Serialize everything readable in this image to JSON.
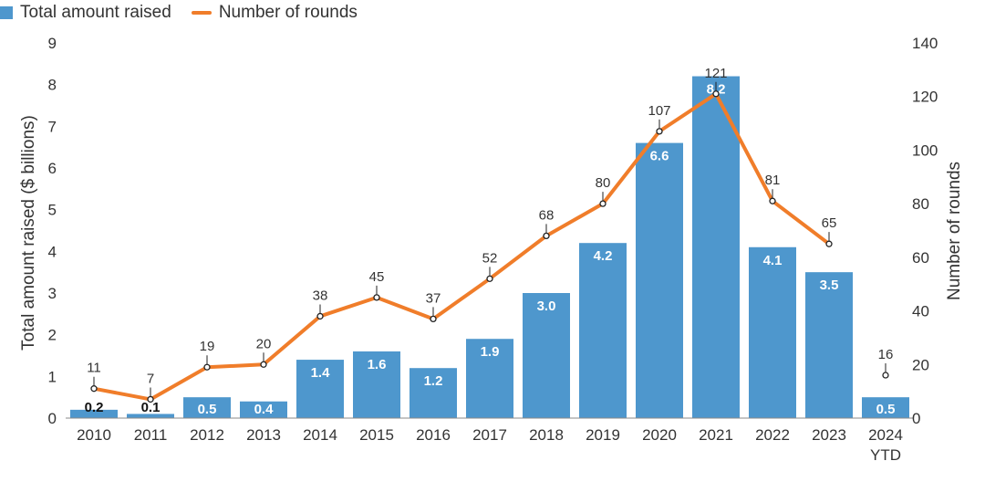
{
  "chart_data": {
    "type": "bar",
    "categories": [
      "2010",
      "2011",
      "2012",
      "2013",
      "2014",
      "2015",
      "2016",
      "2017",
      "2018",
      "2019",
      "2020",
      "2021",
      "2022",
      "2023",
      "2024"
    ],
    "category_sublabels": [
      "",
      "",
      "",
      "",
      "",
      "",
      "",
      "",
      "",
      "",
      "",
      "",
      "",
      "",
      "YTD"
    ],
    "series": [
      {
        "name": "Total amount raised",
        "type": "bar",
        "axis": "left",
        "color": "#4e97cd",
        "values": [
          0.2,
          0.1,
          0.5,
          0.4,
          1.4,
          1.6,
          1.2,
          1.9,
          3.0,
          4.2,
          6.6,
          8.2,
          4.1,
          3.5,
          0.5
        ],
        "labels": [
          "0.2",
          "0.1",
          "0.5",
          "0.4",
          "1.4",
          "1.6",
          "1.2",
          "1.9",
          "3.0",
          "4.2",
          "6.6",
          "8.2",
          "4.1",
          "3.5",
          "0.5"
        ]
      },
      {
        "name": "Number of rounds",
        "type": "line",
        "axis": "right",
        "color": "#f07d2a",
        "values": [
          11,
          7,
          19,
          20,
          38,
          45,
          37,
          52,
          68,
          80,
          107,
          121,
          81,
          65,
          16
        ],
        "labels": [
          "11",
          "7",
          "19",
          "20",
          "38",
          "45",
          "37",
          "52",
          "68",
          "80",
          "107",
          "121",
          "81",
          "65",
          "16"
        ],
        "line_excluded": [
          14
        ]
      }
    ],
    "ylabel": "Total amount raised ($ billions)",
    "ylim": [
      0,
      9
    ],
    "yticks": [
      "0",
      "1",
      "2",
      "3",
      "4",
      "5",
      "6",
      "7",
      "8",
      "9"
    ],
    "y2label": "Number of rounds",
    "y2lim": [
      0,
      140
    ],
    "y2ticks": [
      "0",
      "20",
      "40",
      "60",
      "80",
      "100",
      "120",
      "140"
    ],
    "legend_position": "top-left",
    "grid": false
  }
}
